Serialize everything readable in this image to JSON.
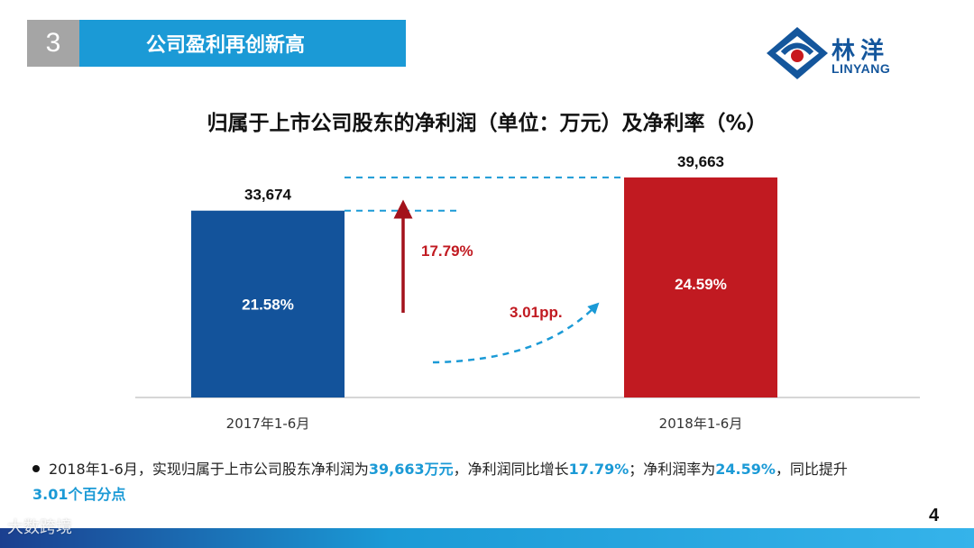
{
  "header": {
    "section_number": "3",
    "section_title": "公司盈利再创新高"
  },
  "logo": {
    "text_cn": "林洋",
    "text_en": "LINYANG",
    "colors": {
      "blue": "#14569c",
      "red": "#c8191e"
    }
  },
  "chart_title": "归属于上市公司股东的净利润（单位：万元）及净利率（%）",
  "chart_data": {
    "type": "bar",
    "categories": [
      "2017年1-6月",
      "2018年1-6月"
    ],
    "values": [
      33674,
      39663
    ],
    "value_labels": [
      "33,674",
      "39,663"
    ],
    "inner_labels": [
      "21.58%",
      "24.59%"
    ],
    "net_margin_percent": [
      21.58,
      24.59
    ],
    "bar_colors": [
      "#13539b",
      "#c11a21"
    ],
    "ylim": [
      0,
      45000
    ],
    "annotations": {
      "growth": "17.79%",
      "margin_change": "3.01pp."
    },
    "title": "归属于上市公司股东的净利润（单位：万元）及净利率（%）",
    "xlabel": "",
    "ylabel": ""
  },
  "bullet": {
    "part1": "2018年1-6月，实现归属于上市公司股东净利润为",
    "hl1": "39,663万元",
    "part2": "，净利润同比增长",
    "hl2": "17.79%",
    "part3": "；净利润率为",
    "hl3": "24.59%",
    "part4": "，同比提升",
    "hl4": "3.01个百分点"
  },
  "page_number": "4",
  "watermark": "大数跨境",
  "colors": {
    "accent": "#1b9ad6",
    "header_gray": "#a5a5a5",
    "arrow_red": "#a3121b"
  }
}
